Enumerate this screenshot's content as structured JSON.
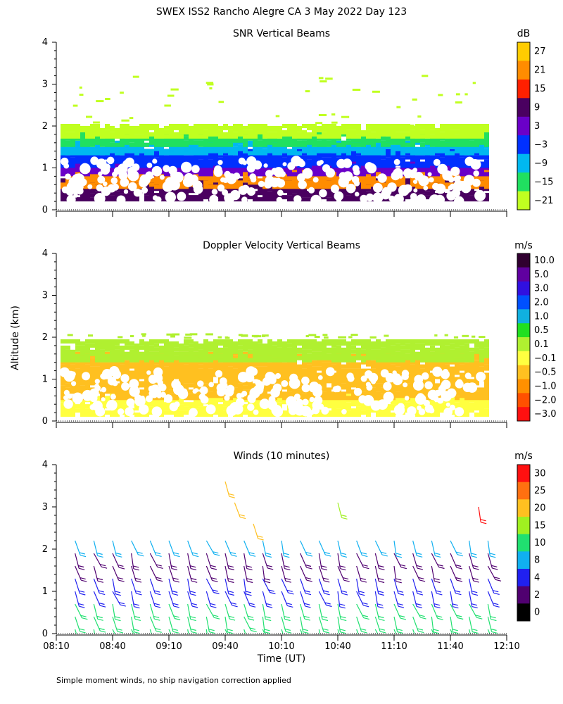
{
  "page": {
    "title": "SWEX ISS2 Rancho Alegre CA   3 May 2022 Day 123",
    "y_axis_label": "Altitude (km)",
    "x_axis_label": "Time (UT)",
    "footnote": "Simple moment winds, no ship navigation correction applied"
  },
  "chart_data": [
    {
      "type": "heatmap",
      "title": "SNR Vertical Beams",
      "xlabel": "Time (UT)",
      "ylabel": "Altitude (km)",
      "x_ticks": [
        "08:10",
        "08:40",
        "09:10",
        "09:40",
        "10:10",
        "10:40",
        "11:10",
        "11:40",
        "12:10"
      ],
      "xlim": [
        "08:10",
        "12:10"
      ],
      "ylim": [
        0,
        4
      ],
      "y_ticks": [
        0,
        1,
        2,
        3,
        4
      ],
      "colorbar": {
        "unit": "dB",
        "labels": [
          "27",
          "21",
          "15",
          "9",
          "3",
          "−3",
          "−9",
          "−15",
          "−21"
        ],
        "colors": [
          "#ffcc00",
          "#ff8c00",
          "#ff2000",
          "#4a0060",
          "#6a00c8",
          "#0030ff",
          "#00b8f0",
          "#20e060",
          "#c0ff20"
        ]
      },
      "layers": [
        {
          "alt_range_km": [
            0.2,
            0.7
          ],
          "color": "#4a0060"
        },
        {
          "alt_range_km": [
            0.5,
            1.0
          ],
          "color": "#ff8c00"
        },
        {
          "alt_range_km": [
            0.8,
            1.1
          ],
          "color": "#6a00c8"
        },
        {
          "alt_range_km": [
            1.0,
            1.4
          ],
          "color": "#0030ff"
        },
        {
          "alt_range_km": [
            1.3,
            1.6
          ],
          "color": "#00b8f0"
        },
        {
          "alt_range_km": [
            1.5,
            1.8
          ],
          "color": "#20e060"
        },
        {
          "alt_range_km": [
            1.7,
            2.0
          ],
          "color": "#c0ff20"
        }
      ]
    },
    {
      "type": "heatmap",
      "title": "Doppler Velocity Vertical Beams",
      "xlabel": "Time (UT)",
      "ylabel": "Altitude (km)",
      "x_ticks": [
        "08:10",
        "08:40",
        "09:10",
        "09:40",
        "10:10",
        "10:40",
        "11:10",
        "11:40",
        "12:10"
      ],
      "xlim": [
        "08:10",
        "12:10"
      ],
      "ylim": [
        0,
        4
      ],
      "y_ticks": [
        0,
        1,
        2,
        3,
        4
      ],
      "colorbar": {
        "unit": "m/s",
        "labels": [
          "10.0",
          "5.0",
          "3.0",
          "2.0",
          "1.0",
          "0.5",
          "0.1",
          "−0.1",
          "−0.5",
          "−1.0",
          "−2.0",
          "−3.0"
        ],
        "colors": [
          "#300030",
          "#6000a0",
          "#3010e0",
          "#0050ff",
          "#10b0e0",
          "#20e020",
          "#b0f030",
          "#ffff40",
          "#ffc020",
          "#ff9000",
          "#ff5000",
          "#ff1010"
        ]
      },
      "layers": [
        {
          "alt_range_km": [
            0.1,
            0.6
          ],
          "color": "#ffff40"
        },
        {
          "alt_range_km": [
            0.5,
            1.1
          ],
          "color": "#ffc020"
        },
        {
          "alt_range_km": [
            1.0,
            1.6
          ],
          "color": "#ffc020"
        },
        {
          "alt_range_km": [
            1.4,
            1.9
          ],
          "color": "#b0f030"
        }
      ]
    },
    {
      "type": "wind-barbs",
      "title": "Winds (10 minutes)",
      "xlabel": "Time (UT)",
      "ylabel": "Altitude (km)",
      "x_ticks": [
        "08:10",
        "08:40",
        "09:10",
        "09:40",
        "10:10",
        "10:40",
        "11:10",
        "11:40",
        "12:10"
      ],
      "xlim": [
        "08:10",
        "12:10"
      ],
      "ylim": [
        0,
        4
      ],
      "y_ticks": [
        0,
        1,
        2,
        3,
        4
      ],
      "profile_times": [
        "08:20",
        "08:30",
        "08:40",
        "08:50",
        "09:00",
        "09:10",
        "09:20",
        "09:30",
        "09:40",
        "09:50",
        "10:00",
        "10:10",
        "10:20",
        "10:30",
        "10:40",
        "10:50",
        "11:00",
        "11:10",
        "11:20",
        "11:30",
        "11:40",
        "11:50",
        "12:00"
      ],
      "barb_altitudes_km": [
        0.1,
        0.4,
        0.7,
        1.0,
        1.3,
        1.6,
        1.9,
        2.2
      ],
      "isolated_barbs": [
        {
          "time": "09:40",
          "alt_km": 3.6,
          "speed_ms": 20
        },
        {
          "time": "09:45",
          "alt_km": 3.1,
          "speed_ms": 20
        },
        {
          "time": "09:55",
          "alt_km": 2.6,
          "speed_ms": 20
        },
        {
          "time": "10:40",
          "alt_km": 3.1,
          "speed_ms": 15
        },
        {
          "time": "11:55",
          "alt_km": 3.0,
          "speed_ms": 30
        }
      ],
      "colorbar": {
        "unit": "m/s",
        "labels": [
          "30",
          "25",
          "20",
          "15",
          "10",
          "8",
          "4",
          "2",
          "0"
        ],
        "colors": [
          "#ff1010",
          "#ff7010",
          "#ffc020",
          "#a0f020",
          "#20e070",
          "#10b0f0",
          "#2020f0",
          "#500070",
          "#000000"
        ]
      }
    }
  ]
}
